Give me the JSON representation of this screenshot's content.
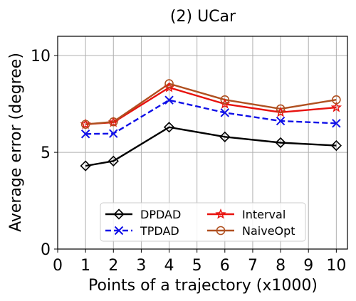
{
  "chart_data": {
    "type": "line",
    "title": "(2) UCar",
    "xlabel": "Points of a trajectory (x1000)",
    "ylabel": "Average error (degree)",
    "xlim": [
      0,
      10.4
    ],
    "ylim": [
      0,
      11
    ],
    "xticks": [
      0,
      1,
      2,
      3,
      4,
      5,
      6,
      7,
      8,
      9,
      10
    ],
    "yticks": [
      0,
      5,
      10
    ],
    "grid": true,
    "legend_position": "bottom-center",
    "x": [
      1,
      2,
      4,
      6,
      8,
      10
    ],
    "series": [
      {
        "name": "DPDAD",
        "values": [
          4.3,
          4.55,
          6.3,
          5.8,
          5.5,
          5.35
        ],
        "color": "#000000",
        "dash": "solid",
        "marker": "diamond"
      },
      {
        "name": "TPDAD",
        "values": [
          5.95,
          5.97,
          7.7,
          7.05,
          6.62,
          6.5
        ],
        "color": "#1010e8",
        "dash": "dashed",
        "marker": "x"
      },
      {
        "name": "Interval",
        "values": [
          6.45,
          6.55,
          8.35,
          7.5,
          7.07,
          7.32
        ],
        "color": "#e8120e",
        "dash": "solid",
        "marker": "star"
      },
      {
        "name": "NaiveOpt",
        "values": [
          6.45,
          6.58,
          8.55,
          7.72,
          7.25,
          7.72
        ],
        "color": "#b05020",
        "dash": "solid",
        "marker": "circle"
      }
    ]
  }
}
